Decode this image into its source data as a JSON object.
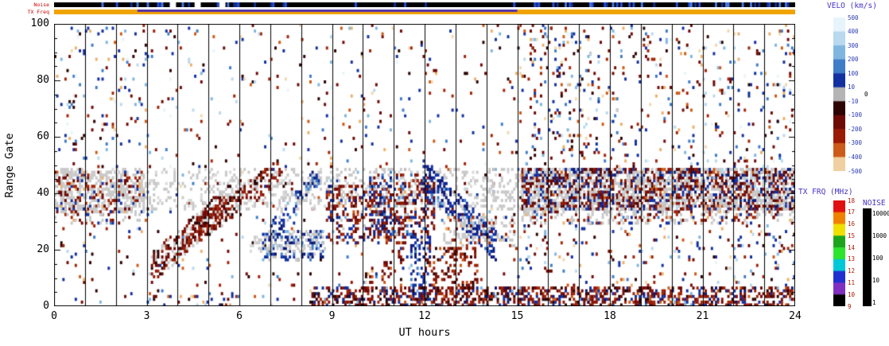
{
  "chart_data": {
    "type": "heatmap",
    "description": "Radar range-time summary plot (SuperDARN style): line-of-sight velocity speckle vs UT time and range gate, gray ground-scatter band near gates 30-48, hourly vertical gridlines, top strips for Noise and TX Freq, side colorbars for velocity, TX frequency and noise.",
    "xlabel": "UT hours",
    "ylabel": "Range Gate",
    "xlim": [
      0,
      24
    ],
    "ylim": [
      0,
      100
    ],
    "x_ticks": [
      0,
      3,
      6,
      9,
      12,
      15,
      18,
      21,
      24
    ],
    "y_ticks": [
      0,
      20,
      40,
      60,
      80,
      100
    ],
    "hour_gridlines_every": 1,
    "seed": 1337,
    "colorbars": {
      "velocity": {
        "title": "VELO (km/s)",
        "title_color": "#4534c4",
        "label_color": "#2b3bb0",
        "tick_labels": [
          "500",
          "400",
          "300",
          "200",
          "100",
          "10",
          "-10",
          "-100",
          "-200",
          "-300",
          "-400",
          "-500"
        ],
        "zero_label": "0",
        "zero_label_color": "#000000",
        "segment_colors": [
          "#e8f4fb",
          "#b8d9ee",
          "#7fb6e0",
          "#3f7cc8",
          "#1230a0",
          "#b4b4b4",
          "#2d0202",
          "#6e0a06",
          "#9a1a06",
          "#cc5a18",
          "#f0d0a0"
        ]
      },
      "txfreq": {
        "title": "TX FRQ (MHz)",
        "title_color": "#4534c4",
        "label_color": "#b01800",
        "tick_labels": [
          "18",
          "17",
          "16",
          "15",
          "14",
          "13",
          "12",
          "11",
          "10",
          "9"
        ],
        "segment_colors": [
          "#e01010",
          "#f08000",
          "#f0e000",
          "#1ca41c",
          "#2ce42c",
          "#00c8d8",
          "#2030d0",
          "#8030c0",
          "#000000"
        ]
      },
      "noise": {
        "title": "NOISE",
        "title_color": "#4534c4",
        "label_color": "#000000",
        "tick_labels": [
          "10000",
          "1000",
          "100",
          "10",
          "1"
        ],
        "bar_color": "#000000"
      }
    },
    "strips": {
      "noise": {
        "label": "Noise",
        "label_color": "#cc0000",
        "base_color": "#000000",
        "speck_colors": [
          "#2a50d8",
          "#4a7ae8",
          "#123090"
        ],
        "white_gaps": [
          [
            3.75,
            3.95
          ],
          [
            4.55,
            4.75
          ],
          [
            5.35,
            5.55
          ]
        ],
        "dense_ranges": [
          [
            2.8,
            7.5
          ],
          [
            15.5,
            23.5
          ]
        ]
      },
      "txfreq": {
        "label": "TX Freq",
        "label_color": "#cc0000",
        "base_color": "#f0a400",
        "overlay_color": "#5533aa",
        "overlay_range": [
          2.7,
          15.0
        ]
      }
    },
    "palettes": {
      "mix": [
        [
          "#6e0a06",
          3
        ],
        [
          "#a02408",
          2
        ],
        [
          "#2d0202",
          2
        ],
        [
          "#1230a0",
          3
        ],
        [
          "#3f7cc8",
          1.5
        ],
        [
          "#7fb6e0",
          1
        ],
        [
          "#b8d9ee",
          1
        ],
        [
          "#cc5a18",
          1
        ],
        [
          "#ecb06c",
          1
        ],
        [
          "#f2d8ae",
          1
        ],
        [
          "#e8f4fb",
          0.6
        ]
      ],
      "gs": [
        [
          "#c9c9c9",
          8
        ],
        [
          "#d9d9d9",
          2
        ]
      ],
      "gs_mix": [
        [
          "#c9c9c9",
          6
        ],
        [
          "#6e0a06",
          1.5
        ],
        [
          "#a02408",
          1
        ],
        [
          "#1230a0",
          1
        ],
        [
          "#ecb06c",
          0.4
        ]
      ],
      "gs_heavy": [
        [
          "#c9c9c9",
          5
        ],
        [
          "#5c0606",
          3
        ],
        [
          "#8c1606",
          2
        ],
        [
          "#1230a0",
          1.5
        ],
        [
          "#0a1870",
          1
        ],
        [
          "#cc5a18",
          0.4
        ],
        [
          "#b8d9ee",
          0.3
        ]
      ],
      "gs_neg": [
        [
          "#c9c9c9",
          3
        ],
        [
          "#6e0a06",
          2.5
        ],
        [
          "#8c1606",
          2
        ],
        [
          "#2d0202",
          1.5
        ],
        [
          "#a02408",
          1
        ]
      ],
      "neg_gs": [
        [
          "#6e0a06",
          3
        ],
        [
          "#8c1606",
          2.5
        ],
        [
          "#a02408",
          2
        ],
        [
          "#c9c9c9",
          2
        ],
        [
          "#2d0202",
          1.5
        ]
      ],
      "neg": [
        [
          "#6e0a06",
          3
        ],
        [
          "#8c1606",
          2.5
        ],
        [
          "#2d0202",
          2
        ],
        [
          "#a02408",
          2
        ],
        [
          "#cc5a18",
          0.6
        ]
      ],
      "pos": [
        [
          "#1230a0",
          3
        ],
        [
          "#0a1870",
          2.5
        ],
        [
          "#101c8c",
          2
        ],
        [
          "#3f7cc8",
          1.2
        ],
        [
          "#7fb6e0",
          0.6
        ]
      ],
      "pos_gs": [
        [
          "#1230a0",
          3
        ],
        [
          "#0a1870",
          2
        ],
        [
          "#3f7cc8",
          1.2
        ],
        [
          "#c9c9c9",
          2
        ],
        [
          "#7fb6e0",
          0.5
        ]
      ],
      "negpos": [
        [
          "#6e0a06",
          2.5
        ],
        [
          "#8c1606",
          2
        ],
        [
          "#a02408",
          1.5
        ],
        [
          "#1230a0",
          2.5
        ],
        [
          "#0a1870",
          2
        ],
        [
          "#3f7cc8",
          1
        ],
        [
          "#c9c9c9",
          0.7
        ],
        [
          "#ecb06c",
          0.5
        ]
      ],
      "central": [
        [
          "#6e0a06",
          3
        ],
        [
          "#8c1606",
          2.5
        ],
        [
          "#a02408",
          2
        ],
        [
          "#1230a0",
          1.5
        ],
        [
          "#0a1870",
          1
        ],
        [
          "#c9c9c9",
          1.2
        ],
        [
          "#cc5a18",
          0.6
        ]
      ],
      "bottom": [
        [
          "#6e0a06",
          3
        ],
        [
          "#8c1606",
          2.5
        ],
        [
          "#2d0202",
          2
        ],
        [
          "#a02408",
          2
        ],
        [
          "#1230a0",
          1.5
        ],
        [
          "#0a1870",
          1.2
        ],
        [
          "#cc5a18",
          0.7
        ],
        [
          "#7fb6e0",
          0.4
        ]
      ]
    },
    "regions": [
      {
        "name": "background-scatter",
        "t": [
          0,
          24
        ],
        "g": [
          0,
          99
        ],
        "density": 0.028,
        "palette": "mix"
      },
      {
        "name": "background-scatter-right",
        "t": [
          15,
          24
        ],
        "g": [
          6,
          99
        ],
        "density": 0.035,
        "palette": "mix"
      },
      {
        "name": "cluster-top-left",
        "t": [
          0.4,
          3
        ],
        "g": [
          55,
          99
        ],
        "density": 0.05,
        "palette": "mix"
      },
      {
        "name": "cluster-16h-top",
        "t": [
          15.3,
          17.6
        ],
        "g": [
          52,
          99
        ],
        "density": 0.06,
        "palette": "mix"
      },
      {
        "name": "cluster-10h-top",
        "t": [
          9.3,
          11.6
        ],
        "g": [
          55,
          75
        ],
        "density": 0.04,
        "palette": "mix"
      },
      {
        "name": "ground-scatter-band",
        "t": [
          0,
          24
        ],
        "g": [
          34,
          48
        ],
        "density": 0.22,
        "palette": "gs"
      },
      {
        "name": "ground-scatter-left",
        "t": [
          0,
          2.9
        ],
        "g": [
          33,
          47
        ],
        "density": 0.5,
        "palette": "gs_mix"
      },
      {
        "name": "ground-scatter-right",
        "t": [
          15.1,
          24
        ],
        "g": [
          34,
          48
        ],
        "density": 0.65,
        "palette": "gs_heavy"
      },
      {
        "name": "ground-scatter-right-low",
        "t": [
          15.1,
          24
        ],
        "g": [
          29,
          34
        ],
        "density": 0.3,
        "palette": "gs_mix"
      },
      {
        "name": "ground-scatter-left-low",
        "t": [
          0,
          2.9
        ],
        "g": [
          29,
          34
        ],
        "density": 0.25,
        "palette": "gs_mix"
      },
      {
        "name": "diagonal-gs-red-3h",
        "type": "diag",
        "t": [
          3.1,
          5.7
        ],
        "g_path": [
          13,
          38
        ],
        "half_width": 5,
        "density": 0.5,
        "palette": "gs_neg"
      },
      {
        "name": "diagonal-red-4h",
        "type": "diag",
        "t": [
          4.4,
          7.3
        ],
        "g_path": [
          24,
          48
        ],
        "half_width": 4,
        "density": 0.4,
        "palette": "neg_gs"
      },
      {
        "name": "diagonal-blue-7h",
        "type": "diag",
        "t": [
          7.0,
          8.6
        ],
        "g_path": [
          26,
          47
        ],
        "half_width": 3,
        "density": 0.35,
        "palette": "pos_gs"
      },
      {
        "name": "blue-blob-7h",
        "t": [
          6.7,
          8.7
        ],
        "g": [
          16,
          26
        ],
        "density": 0.5,
        "palette": "pos_gs"
      },
      {
        "name": "gray-patch-7h",
        "t": [
          6.3,
          8.8
        ],
        "g": [
          19,
          25
        ],
        "density": 0.25,
        "palette": "gs"
      },
      {
        "name": "central-red-9h",
        "t": [
          8.8,
          11.4
        ],
        "g": [
          22,
          42
        ],
        "density": 0.3,
        "palette": "central"
      },
      {
        "name": "central-mixed-10h",
        "t": [
          10.2,
          12.35
        ],
        "g": [
          24,
          46
        ],
        "density": 0.35,
        "palette": "negpos"
      },
      {
        "name": "blue-column-12h",
        "t": [
          11.5,
          12.2
        ],
        "g": [
          2,
          24
        ],
        "density": 0.35,
        "palette": "pos"
      },
      {
        "name": "blue-diagonal-12h",
        "type": "diag",
        "t": [
          11.9,
          14.3
        ],
        "g_path": [
          46,
          20
        ],
        "half_width": 5,
        "density": 0.45,
        "palette": "pos"
      },
      {
        "name": "gray-patch-13h",
        "t": [
          12.6,
          14.9
        ],
        "g": [
          21,
          31
        ],
        "density": 0.3,
        "palette": "gs_mix"
      },
      {
        "name": "red-streaks-12h",
        "t": [
          11.9,
          13.7
        ],
        "g": [
          4,
          20
        ],
        "density": 0.25,
        "palette": "neg"
      },
      {
        "name": "red-diagonal-10h",
        "type": "diag",
        "t": [
          9.3,
          11.3
        ],
        "g_path": [
          2,
          18
        ],
        "half_width": 4,
        "density": 0.2,
        "palette": "neg"
      },
      {
        "name": "bottom-red-band",
        "t": [
          8.3,
          24
        ],
        "g": [
          0,
          6
        ],
        "density": 0.45,
        "palette": "bottom"
      },
      {
        "name": "bottom-sparse-early",
        "t": [
          3,
          8.3
        ],
        "g": [
          0,
          3
        ],
        "density": 0.1,
        "palette": "mix"
      }
    ]
  }
}
